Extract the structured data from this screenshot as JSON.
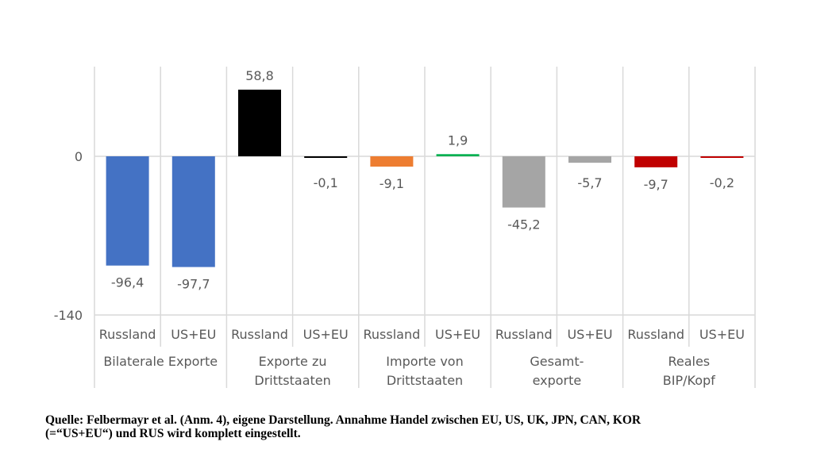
{
  "chart_data": {
    "type": "bar",
    "ylim": [
      -140,
      80
    ],
    "yticks": [
      "0",
      "-140"
    ],
    "groups": [
      {
        "label": [
          "Bilaterale Exporte"
        ],
        "bars": [
          {
            "category": "Russland",
            "value": -96.4,
            "label": "-96,4",
            "color": "#4472c4"
          },
          {
            "category": "US+EU",
            "value": -97.7,
            "label": "-97,7",
            "color": "#4472c4"
          }
        ]
      },
      {
        "label": [
          "Exporte zu",
          "Drittstaaten"
        ],
        "bars": [
          {
            "category": "Russland",
            "value": 58.8,
            "label": "58,8",
            "color": "#000000"
          },
          {
            "category": "US+EU",
            "value": -0.1,
            "label": "-0,1",
            "color": "#000000"
          }
        ]
      },
      {
        "label": [
          "Importe von",
          "Drittstaaten"
        ],
        "bars": [
          {
            "category": "Russland",
            "value": -9.1,
            "label": "-9,1",
            "color": "#ed7d31"
          },
          {
            "category": "US+EU",
            "value": 1.9,
            "label": "1,9",
            "color": "#00b050"
          }
        ]
      },
      {
        "label": [
          "Gesamt-",
          "exporte"
        ],
        "bars": [
          {
            "category": "Russland",
            "value": -45.2,
            "label": "-45,2",
            "color": "#a5a5a5"
          },
          {
            "category": "US+EU",
            "value": -5.7,
            "label": "-5,7",
            "color": "#a5a5a5"
          }
        ]
      },
      {
        "label": [
          "Reales",
          "BIP/Kopf"
        ],
        "bars": [
          {
            "category": "Russland",
            "value": -9.7,
            "label": "-9,7",
            "color": "#c00000"
          },
          {
            "category": "US+EU",
            "value": -0.2,
            "label": "-0,2",
            "color": "#c00000"
          }
        ]
      }
    ]
  },
  "caption": {
    "line1": "Quelle: Felbermayr et al. (Anm. 4), eigene Darstellung. Annahme Handel zwischen EU, US, UK, JPN, CAN, KOR",
    "line2": "(=“US+EU“) und RUS wird komplett eingestellt."
  }
}
